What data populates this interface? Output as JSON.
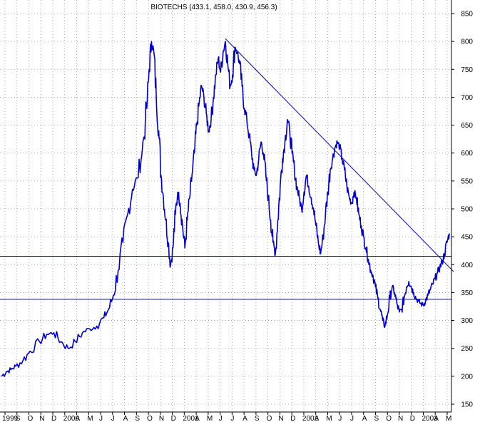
{
  "chart_data": {
    "type": "line",
    "title": "BIOTECHS (433.1, 458.0, 430.9, 456.3)",
    "ylim": [
      150,
      850
    ],
    "y_ticks": [
      150,
      200,
      250,
      300,
      350,
      400,
      450,
      500,
      550,
      600,
      650,
      700,
      750,
      800,
      850
    ],
    "grid": true,
    "x_ticks": [
      "1999",
      "S",
      "O",
      "N",
      "D",
      "2000",
      "A",
      "M",
      "J",
      "J",
      "A",
      "S",
      "O",
      "N",
      "D",
      "2001",
      "A",
      "M",
      "J",
      "J",
      "A",
      "S",
      "O",
      "N",
      "D",
      "2002",
      "A",
      "M",
      "J",
      "J",
      "A",
      "S",
      "O",
      "N",
      "D",
      "2003",
      "A",
      "M"
    ],
    "colors": {
      "series": "#0000cc",
      "trendline": "#0000cc",
      "grid": "#9a9a9a",
      "axis": "#000000"
    },
    "series": [
      {
        "values": [
          [
            0,
            200
          ],
          [
            2,
            208
          ],
          [
            4,
            212
          ],
          [
            6,
            218
          ],
          [
            9,
            228
          ],
          [
            12,
            245
          ],
          [
            16,
            262
          ],
          [
            19,
            275
          ],
          [
            22,
            278
          ],
          [
            25,
            262
          ],
          [
            28,
            250
          ],
          [
            31,
            262
          ],
          [
            34,
            278
          ],
          [
            37,
            285
          ],
          [
            40,
            290
          ],
          [
            43,
            305
          ],
          [
            45,
            320
          ],
          [
            47,
            345
          ],
          [
            49,
            390
          ],
          [
            51,
            440
          ],
          [
            53,
            490
          ],
          [
            55,
            535
          ],
          [
            57,
            555
          ],
          [
            59,
            600
          ],
          [
            61,
            680
          ],
          [
            62,
            750
          ],
          [
            63,
            800
          ],
          [
            64,
            780
          ],
          [
            65,
            700
          ],
          [
            66,
            640
          ],
          [
            67,
            560
          ],
          [
            68,
            520
          ],
          [
            69,
            480
          ],
          [
            70,
            440
          ],
          [
            71,
            400
          ],
          [
            72,
            430
          ],
          [
            73,
            490
          ],
          [
            74,
            530
          ],
          [
            75,
            510
          ],
          [
            76,
            470
          ],
          [
            77,
            430
          ],
          [
            78,
            480
          ],
          [
            79,
            520
          ],
          [
            80,
            560
          ],
          [
            81,
            600
          ],
          [
            82,
            650
          ],
          [
            83,
            690
          ],
          [
            84,
            720
          ],
          [
            85,
            700
          ],
          [
            86,
            670
          ],
          [
            87,
            640
          ],
          [
            88,
            660
          ],
          [
            89,
            700
          ],
          [
            90,
            740
          ],
          [
            91,
            770
          ],
          [
            92,
            745
          ],
          [
            93,
            780
          ],
          [
            94,
            800
          ],
          [
            95,
            760
          ],
          [
            96,
            720
          ],
          [
            97,
            740
          ],
          [
            98,
            790
          ],
          [
            99,
            780
          ],
          [
            100,
            760
          ],
          [
            101,
            720
          ],
          [
            102,
            680
          ],
          [
            103,
            660
          ],
          [
            104,
            630
          ],
          [
            105,
            600
          ],
          [
            106,
            570
          ],
          [
            107,
            560
          ],
          [
            108,
            590
          ],
          [
            109,
            620
          ],
          [
            110,
            600
          ],
          [
            111,
            560
          ],
          [
            112,
            520
          ],
          [
            113,
            480
          ],
          [
            114,
            440
          ],
          [
            115,
            420
          ],
          [
            116,
            480
          ],
          [
            117,
            540
          ],
          [
            118,
            590
          ],
          [
            119,
            620
          ],
          [
            120,
            660
          ],
          [
            121,
            640
          ],
          [
            122,
            600
          ],
          [
            123,
            570
          ],
          [
            124,
            540
          ],
          [
            125,
            520
          ],
          [
            126,
            500
          ],
          [
            127,
            530
          ],
          [
            128,
            560
          ],
          [
            129,
            540
          ],
          [
            130,
            520
          ],
          [
            131,
            500
          ],
          [
            132,
            470
          ],
          [
            133,
            440
          ],
          [
            134,
            420
          ],
          [
            135,
            450
          ],
          [
            136,
            490
          ],
          [
            137,
            530
          ],
          [
            138,
            570
          ],
          [
            139,
            590
          ],
          [
            140,
            610
          ],
          [
            141,
            620
          ],
          [
            142,
            610
          ],
          [
            143,
            590
          ],
          [
            144,
            570
          ],
          [
            145,
            540
          ],
          [
            146,
            520
          ],
          [
            147,
            510
          ],
          [
            148,
            530
          ],
          [
            149,
            520
          ],
          [
            150,
            490
          ],
          [
            151,
            470
          ],
          [
            152,
            450
          ],
          [
            153,
            430
          ],
          [
            154,
            410
          ],
          [
            155,
            390
          ],
          [
            156,
            380
          ],
          [
            157,
            360
          ],
          [
            158,
            340
          ],
          [
            159,
            320
          ],
          [
            160,
            300
          ],
          [
            161,
            290
          ],
          [
            162,
            310
          ],
          [
            163,
            340
          ],
          [
            164,
            360
          ],
          [
            165,
            350
          ],
          [
            166,
            330
          ],
          [
            167,
            315
          ],
          [
            168,
            320
          ],
          [
            169,
            340
          ],
          [
            170,
            360
          ],
          [
            171,
            370
          ],
          [
            172,
            360
          ],
          [
            173,
            350
          ],
          [
            174,
            340
          ],
          [
            175,
            335
          ],
          [
            176,
            330
          ],
          [
            177,
            328
          ],
          [
            178,
            335
          ],
          [
            179,
            345
          ],
          [
            180,
            355
          ],
          [
            181,
            365
          ],
          [
            182,
            375
          ],
          [
            183,
            385
          ],
          [
            184,
            395
          ],
          [
            185,
            405
          ],
          [
            186,
            420
          ],
          [
            187,
            440
          ],
          [
            188,
            456
          ]
        ]
      }
    ],
    "reference_lines": [
      415,
      338
    ],
    "trendline": [
      [
        94,
        805
      ],
      [
        188,
        385
      ]
    ]
  }
}
